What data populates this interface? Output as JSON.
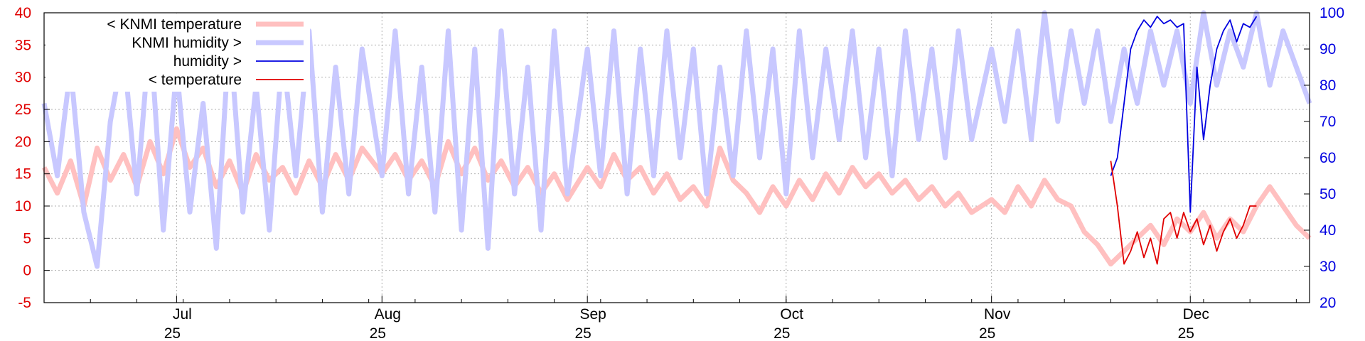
{
  "chart_data": {
    "type": "line",
    "title": "",
    "xlabel": "",
    "ylabel": "",
    "y2label": "",
    "grid": true,
    "legend_position": "top-left",
    "x_domain": [
      "2025-06-11",
      "2025-12-19"
    ],
    "x_ticks": [
      {
        "date": "2025-07-01",
        "month": "Jul",
        "year": "25"
      },
      {
        "date": "2025-08-01",
        "month": "Aug",
        "year": "25"
      },
      {
        "date": "2025-09-01",
        "month": "Sep",
        "year": "25"
      },
      {
        "date": "2025-10-01",
        "month": "Oct",
        "year": "25"
      },
      {
        "date": "2025-11-01",
        "month": "Nov",
        "year": "25"
      },
      {
        "date": "2025-12-01",
        "month": "Dec",
        "year": "25"
      }
    ],
    "y_left": {
      "range": [
        -5,
        40
      ],
      "ticks": [
        "-5",
        "0",
        "5",
        "10",
        "15",
        "20",
        "25",
        "30",
        "35",
        "40"
      ],
      "color": "#e00000"
    },
    "y_right": {
      "range": [
        20,
        100
      ],
      "ticks": [
        "20",
        "30",
        "40",
        "50",
        "60",
        "70",
        "80",
        "90",
        "100"
      ],
      "color": "#0000e0"
    },
    "series": [
      {
        "name": "< KNMI temperature",
        "axis": "left",
        "color": "#ffc0c0",
        "points": [
          [
            "2025-06-11",
            16
          ],
          [
            "2025-06-13",
            12
          ],
          [
            "2025-06-15",
            17
          ],
          [
            "2025-06-17",
            10
          ],
          [
            "2025-06-19",
            19
          ],
          [
            "2025-06-21",
            14
          ],
          [
            "2025-06-23",
            18
          ],
          [
            "2025-06-25",
            13
          ],
          [
            "2025-06-27",
            20
          ],
          [
            "2025-06-29",
            15
          ],
          [
            "2025-07-01",
            22
          ],
          [
            "2025-07-03",
            16
          ],
          [
            "2025-07-05",
            19
          ],
          [
            "2025-07-07",
            13
          ],
          [
            "2025-07-09",
            17
          ],
          [
            "2025-07-11",
            12
          ],
          [
            "2025-07-13",
            18
          ],
          [
            "2025-07-15",
            14
          ],
          [
            "2025-07-17",
            16
          ],
          [
            "2025-07-19",
            12
          ],
          [
            "2025-07-21",
            17
          ],
          [
            "2025-07-23",
            13
          ],
          [
            "2025-07-25",
            18
          ],
          [
            "2025-07-27",
            14
          ],
          [
            "2025-07-29",
            19
          ],
          [
            "2025-08-01",
            15
          ],
          [
            "2025-08-03",
            18
          ],
          [
            "2025-08-05",
            14
          ],
          [
            "2025-08-07",
            17
          ],
          [
            "2025-08-09",
            13
          ],
          [
            "2025-08-11",
            20
          ],
          [
            "2025-08-13",
            15
          ],
          [
            "2025-08-15",
            19
          ],
          [
            "2025-08-17",
            14
          ],
          [
            "2025-08-19",
            17
          ],
          [
            "2025-08-21",
            13
          ],
          [
            "2025-08-23",
            16
          ],
          [
            "2025-08-25",
            12
          ],
          [
            "2025-08-27",
            15
          ],
          [
            "2025-08-29",
            11
          ],
          [
            "2025-09-01",
            16
          ],
          [
            "2025-09-03",
            13
          ],
          [
            "2025-09-05",
            18
          ],
          [
            "2025-09-07",
            14
          ],
          [
            "2025-09-09",
            16
          ],
          [
            "2025-09-11",
            12
          ],
          [
            "2025-09-13",
            15
          ],
          [
            "2025-09-15",
            11
          ],
          [
            "2025-09-17",
            13
          ],
          [
            "2025-09-19",
            10
          ],
          [
            "2025-09-21",
            19
          ],
          [
            "2025-09-23",
            14
          ],
          [
            "2025-09-25",
            12
          ],
          [
            "2025-09-27",
            9
          ],
          [
            "2025-09-29",
            13
          ],
          [
            "2025-10-01",
            10
          ],
          [
            "2025-10-03",
            14
          ],
          [
            "2025-10-05",
            11
          ],
          [
            "2025-10-07",
            15
          ],
          [
            "2025-10-09",
            12
          ],
          [
            "2025-10-11",
            16
          ],
          [
            "2025-10-13",
            13
          ],
          [
            "2025-10-15",
            15
          ],
          [
            "2025-10-17",
            12
          ],
          [
            "2025-10-19",
            14
          ],
          [
            "2025-10-21",
            11
          ],
          [
            "2025-10-23",
            13
          ],
          [
            "2025-10-25",
            10
          ],
          [
            "2025-10-27",
            12
          ],
          [
            "2025-10-29",
            9
          ],
          [
            "2025-11-01",
            11
          ],
          [
            "2025-11-03",
            9
          ],
          [
            "2025-11-05",
            13
          ],
          [
            "2025-11-07",
            10
          ],
          [
            "2025-11-09",
            14
          ],
          [
            "2025-11-11",
            11
          ],
          [
            "2025-11-13",
            10
          ],
          [
            "2025-11-15",
            6
          ],
          [
            "2025-11-17",
            4
          ],
          [
            "2025-11-19",
            1
          ],
          [
            "2025-11-21",
            3
          ],
          [
            "2025-11-23",
            5
          ],
          [
            "2025-11-25",
            7
          ],
          [
            "2025-11-27",
            4
          ],
          [
            "2025-11-29",
            8
          ],
          [
            "2025-12-01",
            6
          ],
          [
            "2025-12-03",
            9
          ],
          [
            "2025-12-05",
            5
          ],
          [
            "2025-12-07",
            8
          ],
          [
            "2025-12-09",
            6
          ],
          [
            "2025-12-11",
            10
          ],
          [
            "2025-12-13",
            13
          ],
          [
            "2025-12-15",
            10
          ],
          [
            "2025-12-17",
            7
          ],
          [
            "2025-12-19",
            5
          ]
        ]
      },
      {
        "name": "KNMI humidity >",
        "axis": "right",
        "color": "#c8c8ff",
        "points": [
          [
            "2025-06-11",
            75
          ],
          [
            "2025-06-13",
            55
          ],
          [
            "2025-06-15",
            85
          ],
          [
            "2025-06-17",
            45
          ],
          [
            "2025-06-19",
            30
          ],
          [
            "2025-06-21",
            70
          ],
          [
            "2025-06-23",
            90
          ],
          [
            "2025-06-25",
            50
          ],
          [
            "2025-06-27",
            95
          ],
          [
            "2025-06-29",
            40
          ],
          [
            "2025-07-01",
            85
          ],
          [
            "2025-07-03",
            45
          ],
          [
            "2025-07-05",
            75
          ],
          [
            "2025-07-07",
            35
          ],
          [
            "2025-07-09",
            95
          ],
          [
            "2025-07-11",
            45
          ],
          [
            "2025-07-13",
            80
          ],
          [
            "2025-07-15",
            40
          ],
          [
            "2025-07-17",
            90
          ],
          [
            "2025-07-19",
            55
          ],
          [
            "2025-07-21",
            95
          ],
          [
            "2025-07-23",
            45
          ],
          [
            "2025-07-25",
            85
          ],
          [
            "2025-07-27",
            50
          ],
          [
            "2025-07-29",
            90
          ],
          [
            "2025-08-01",
            55
          ],
          [
            "2025-08-03",
            95
          ],
          [
            "2025-08-05",
            50
          ],
          [
            "2025-08-07",
            85
          ],
          [
            "2025-08-09",
            45
          ],
          [
            "2025-08-11",
            95
          ],
          [
            "2025-08-13",
            40
          ],
          [
            "2025-08-15",
            90
          ],
          [
            "2025-08-17",
            35
          ],
          [
            "2025-08-19",
            95
          ],
          [
            "2025-08-21",
            50
          ],
          [
            "2025-08-23",
            85
          ],
          [
            "2025-08-25",
            40
          ],
          [
            "2025-08-27",
            95
          ],
          [
            "2025-08-29",
            50
          ],
          [
            "2025-09-01",
            90
          ],
          [
            "2025-09-03",
            55
          ],
          [
            "2025-09-05",
            95
          ],
          [
            "2025-09-07",
            50
          ],
          [
            "2025-09-09",
            90
          ],
          [
            "2025-09-11",
            55
          ],
          [
            "2025-09-13",
            95
          ],
          [
            "2025-09-15",
            60
          ],
          [
            "2025-09-17",
            90
          ],
          [
            "2025-09-19",
            50
          ],
          [
            "2025-09-21",
            85
          ],
          [
            "2025-09-23",
            55
          ],
          [
            "2025-09-25",
            95
          ],
          [
            "2025-09-27",
            60
          ],
          [
            "2025-09-29",
            90
          ],
          [
            "2025-10-01",
            50
          ],
          [
            "2025-10-03",
            95
          ],
          [
            "2025-10-05",
            60
          ],
          [
            "2025-10-07",
            90
          ],
          [
            "2025-10-09",
            65
          ],
          [
            "2025-10-11",
            95
          ],
          [
            "2025-10-13",
            60
          ],
          [
            "2025-10-15",
            90
          ],
          [
            "2025-10-17",
            55
          ],
          [
            "2025-10-19",
            95
          ],
          [
            "2025-10-21",
            65
          ],
          [
            "2025-10-23",
            90
          ],
          [
            "2025-10-25",
            60
          ],
          [
            "2025-10-27",
            95
          ],
          [
            "2025-10-29",
            65
          ],
          [
            "2025-11-01",
            90
          ],
          [
            "2025-11-03",
            70
          ],
          [
            "2025-11-05",
            95
          ],
          [
            "2025-11-07",
            65
          ],
          [
            "2025-11-09",
            100
          ],
          [
            "2025-11-11",
            70
          ],
          [
            "2025-11-13",
            95
          ],
          [
            "2025-11-15",
            75
          ],
          [
            "2025-11-17",
            95
          ],
          [
            "2025-11-19",
            70
          ],
          [
            "2025-11-21",
            90
          ],
          [
            "2025-11-23",
            75
          ],
          [
            "2025-11-25",
            95
          ],
          [
            "2025-11-27",
            80
          ],
          [
            "2025-11-29",
            95
          ],
          [
            "2025-12-01",
            75
          ],
          [
            "2025-12-03",
            100
          ],
          [
            "2025-12-05",
            80
          ],
          [
            "2025-12-07",
            95
          ],
          [
            "2025-12-09",
            85
          ],
          [
            "2025-12-11",
            100
          ],
          [
            "2025-12-13",
            80
          ],
          [
            "2025-12-15",
            95
          ],
          [
            "2025-12-17",
            85
          ],
          [
            "2025-12-19",
            75
          ]
        ]
      },
      {
        "name": "humidity >",
        "axis": "right",
        "color": "#0000e0",
        "points": [
          [
            "2025-11-19",
            55
          ],
          [
            "2025-11-20",
            60
          ],
          [
            "2025-11-21",
            75
          ],
          [
            "2025-11-22",
            90
          ],
          [
            "2025-11-23",
            95
          ],
          [
            "2025-11-24",
            98
          ],
          [
            "2025-11-25",
            96
          ],
          [
            "2025-11-26",
            99
          ],
          [
            "2025-11-27",
            97
          ],
          [
            "2025-11-28",
            98
          ],
          [
            "2025-11-29",
            96
          ],
          [
            "2025-11-30",
            97
          ],
          [
            "2025-12-01",
            45
          ],
          [
            "2025-12-02",
            85
          ],
          [
            "2025-12-03",
            65
          ],
          [
            "2025-12-04",
            80
          ],
          [
            "2025-12-05",
            90
          ],
          [
            "2025-12-06",
            95
          ],
          [
            "2025-12-07",
            98
          ],
          [
            "2025-12-08",
            92
          ],
          [
            "2025-12-09",
            97
          ],
          [
            "2025-12-10",
            96
          ],
          [
            "2025-12-11",
            99
          ]
        ]
      },
      {
        "name": "< temperature",
        "axis": "left",
        "color": "#e00000",
        "points": [
          [
            "2025-11-19",
            17
          ],
          [
            "2025-11-20",
            10
          ],
          [
            "2025-11-21",
            1
          ],
          [
            "2025-11-22",
            3
          ],
          [
            "2025-11-23",
            6
          ],
          [
            "2025-11-24",
            2
          ],
          [
            "2025-11-25",
            5
          ],
          [
            "2025-11-26",
            1
          ],
          [
            "2025-11-27",
            8
          ],
          [
            "2025-11-28",
            9
          ],
          [
            "2025-11-29",
            5
          ],
          [
            "2025-11-30",
            9
          ],
          [
            "2025-12-01",
            6
          ],
          [
            "2025-12-02",
            8
          ],
          [
            "2025-12-03",
            4
          ],
          [
            "2025-12-04",
            7
          ],
          [
            "2025-12-05",
            3
          ],
          [
            "2025-12-06",
            6
          ],
          [
            "2025-12-07",
            8
          ],
          [
            "2025-12-08",
            5
          ],
          [
            "2025-12-09",
            7
          ],
          [
            "2025-12-10",
            10
          ],
          [
            "2025-12-11",
            10
          ]
        ]
      }
    ]
  }
}
